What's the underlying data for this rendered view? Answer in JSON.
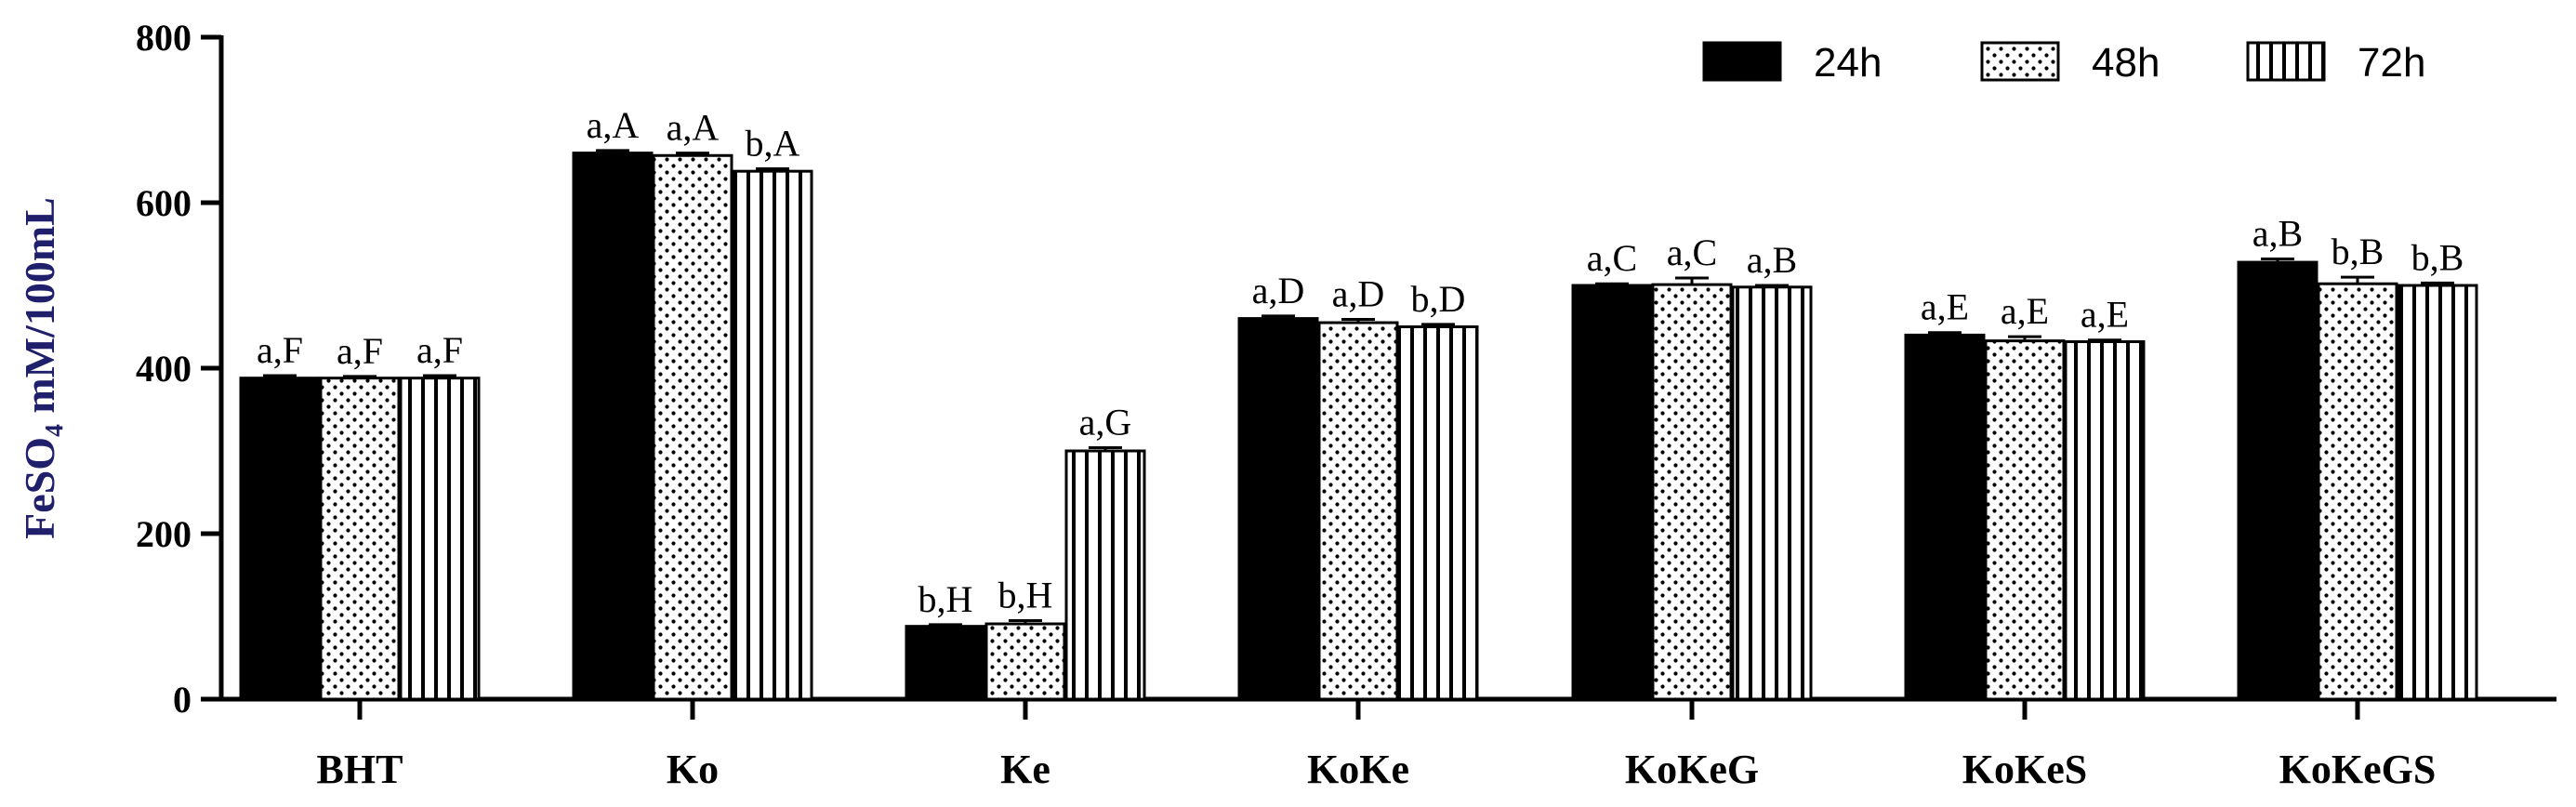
{
  "chart_data": {
    "type": "bar",
    "title": "",
    "xlabel": "",
    "ylabel": "FeSO₄ mM/100mL",
    "ylim": [
      0,
      800
    ],
    "yticks": [
      0,
      200,
      400,
      600,
      800
    ],
    "grid": false,
    "legend_position": "top-right",
    "categories": [
      "BHT",
      "Ko",
      "Ke",
      "KoKe",
      "KoKeG",
      "KoKeS",
      "KoKeGS"
    ],
    "series": [
      {
        "name": "24h",
        "pattern": "solid",
        "values": [
          388,
          660,
          88,
          460,
          500,
          440,
          528
        ],
        "errors": [
          3,
          3,
          2,
          3,
          2,
          3,
          4
        ],
        "labels": [
          "a,F",
          "a,A",
          "b,H",
          "a,D",
          "a,C",
          "a,E",
          "a,B"
        ]
      },
      {
        "name": "48h",
        "pattern": "dots",
        "values": [
          388,
          657,
          91,
          455,
          501,
          433,
          502
        ],
        "errors": [
          2,
          3,
          4,
          4,
          8,
          5,
          8
        ],
        "labels": [
          "a,F",
          "a,A",
          "b,H",
          "a,D",
          "a,C",
          "a,E",
          "b,B"
        ]
      },
      {
        "name": "72h",
        "pattern": "vertical-lines",
        "values": [
          388,
          638,
          300,
          450,
          498,
          432,
          500
        ],
        "errors": [
          3,
          3,
          4,
          3,
          2,
          2,
          3
        ],
        "labels": [
          "a,F",
          "b,A",
          "a,G",
          "b,D",
          "a,B",
          "a,E",
          "b,B"
        ]
      }
    ],
    "colors": {
      "bar_fill": "#000000",
      "bar_stroke": "#000000",
      "background": "#ffffff",
      "ylabel": "#1f1f6b"
    }
  }
}
